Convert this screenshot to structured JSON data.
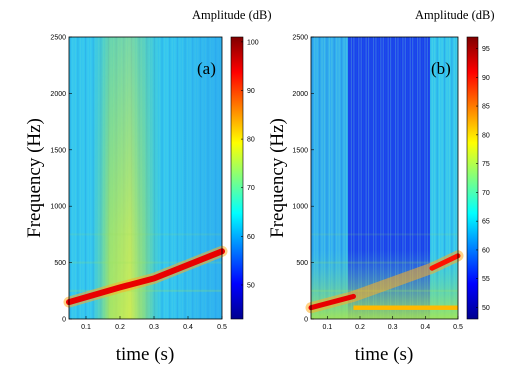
{
  "chart_data": [
    {
      "type": "heatmap",
      "panel_label": "(a)",
      "xlabel": "time (s)",
      "ylabel": "Frequency (Hz)",
      "xlim": [
        0.05,
        0.5
      ],
      "ylim": [
        0,
        2500
      ],
      "xticks": [
        "0.1",
        "0.2",
        "0.3",
        "0.4",
        "0.5"
      ],
      "yticks": [
        "0",
        "500",
        "1000",
        "1500",
        "2000",
        "2500"
      ],
      "colorbar": {
        "title": "Amplitude (dB)",
        "range": [
          43,
          101
        ],
        "ticks": [
          "50",
          "60",
          "70",
          "80",
          "90",
          "100"
        ]
      },
      "background_level_db": 66,
      "dominant_ridge": {
        "description_values": true,
        "points": [
          [
            0.05,
            150,
            94
          ],
          [
            0.2,
            280,
            95
          ],
          [
            0.3,
            360,
            93
          ],
          [
            0.5,
            600,
            90
          ]
        ]
      },
      "broadband_band": {
        "t_start": 0.15,
        "t_end": 0.32,
        "level_db": 77
      }
    },
    {
      "type": "heatmap",
      "panel_label": "(b)",
      "xlabel": "time (s)",
      "ylabel": "Frequency (Hz)",
      "xlim": [
        0.05,
        0.5
      ],
      "ylim": [
        0,
        2500
      ],
      "xticks": [
        "0.1",
        "0.2",
        "0.3",
        "0.4",
        "0.5"
      ],
      "yticks": [
        "0",
        "500",
        "1000",
        "1500",
        "2000",
        "2500"
      ],
      "colorbar": {
        "title": "Amplitude (dB)",
        "range": [
          48,
          97
        ],
        "ticks": [
          "50",
          "55",
          "60",
          "65",
          "70",
          "75",
          "80",
          "85",
          "90",
          "95"
        ]
      },
      "background_level_db": 68,
      "dominant_ridge": {
        "points": [
          [
            0.05,
            100,
            92
          ],
          [
            0.18,
            200,
            92
          ],
          [
            0.42,
            450,
            90
          ],
          [
            0.5,
            560,
            92
          ]
        ]
      },
      "low_band": {
        "t_start": 0.18,
        "t_end": 0.5,
        "freq_hz": 100,
        "level_db": 82
      },
      "quiet_region": {
        "t_start": 0.18,
        "t_end": 0.43,
        "level_db": 56
      }
    }
  ]
}
